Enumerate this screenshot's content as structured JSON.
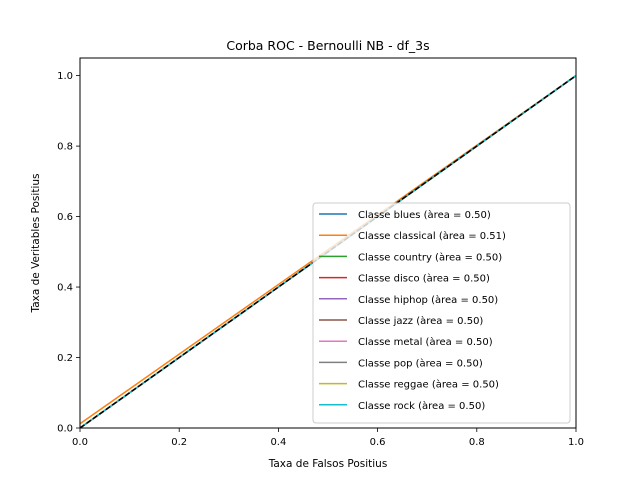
{
  "chart_data": {
    "type": "line",
    "title": "Corba ROC - Bernoulli NB - df_3s",
    "xlabel": "Taxa de Falsos Positius",
    "ylabel": "Taxa de Veritables Positius",
    "xlim": [
      0,
      1
    ],
    "ylim": [
      0,
      1.05
    ],
    "xticks": [
      "0.0",
      "0.2",
      "0.4",
      "0.6",
      "0.8",
      "1.0"
    ],
    "yticks": [
      "0.0",
      "0.2",
      "0.4",
      "0.6",
      "0.8",
      "1.0"
    ],
    "grid": false,
    "legend_position": "lower-right",
    "series": [
      {
        "name": "Classe blues (àrea = 0.50)",
        "color": "#1f77b4",
        "x": [
          0,
          1
        ],
        "y": [
          0,
          1
        ]
      },
      {
        "name": "Classe classical (àrea = 0.51)",
        "color": "#ff7f0e",
        "x": [
          0,
          1
        ],
        "y": [
          0.012,
          1
        ]
      },
      {
        "name": "Classe country (àrea = 0.50)",
        "color": "#2ca02c",
        "x": [
          0,
          1
        ],
        "y": [
          0,
          1
        ]
      },
      {
        "name": "Classe disco (àrea = 0.50)",
        "color": "#d62728",
        "x": [
          0,
          1
        ],
        "y": [
          0,
          1
        ]
      },
      {
        "name": "Classe hiphop (àrea = 0.50)",
        "color": "#9467bd",
        "x": [
          0,
          1
        ],
        "y": [
          0,
          1
        ]
      },
      {
        "name": "Classe jazz (àrea = 0.50)",
        "color": "#8c564b",
        "x": [
          0,
          1
        ],
        "y": [
          0,
          1
        ]
      },
      {
        "name": "Classe metal (àrea = 0.50)",
        "color": "#e377c2",
        "x": [
          0,
          1
        ],
        "y": [
          0,
          1
        ]
      },
      {
        "name": "Classe pop (àrea = 0.50)",
        "color": "#7f7f7f",
        "x": [
          0,
          1
        ],
        "y": [
          0,
          1
        ]
      },
      {
        "name": "Classe reggae (àrea = 0.50)",
        "color": "#bcbd22",
        "x": [
          0,
          1
        ],
        "y": [
          0,
          1
        ]
      },
      {
        "name": "Classe rock (àrea = 0.50)",
        "color": "#17becf",
        "x": [
          0,
          1
        ],
        "y": [
          0,
          1
        ]
      }
    ],
    "reference_line": {
      "x": [
        0,
        1
      ],
      "y": [
        0,
        1
      ],
      "style": "dashed",
      "color": "#000000"
    }
  }
}
